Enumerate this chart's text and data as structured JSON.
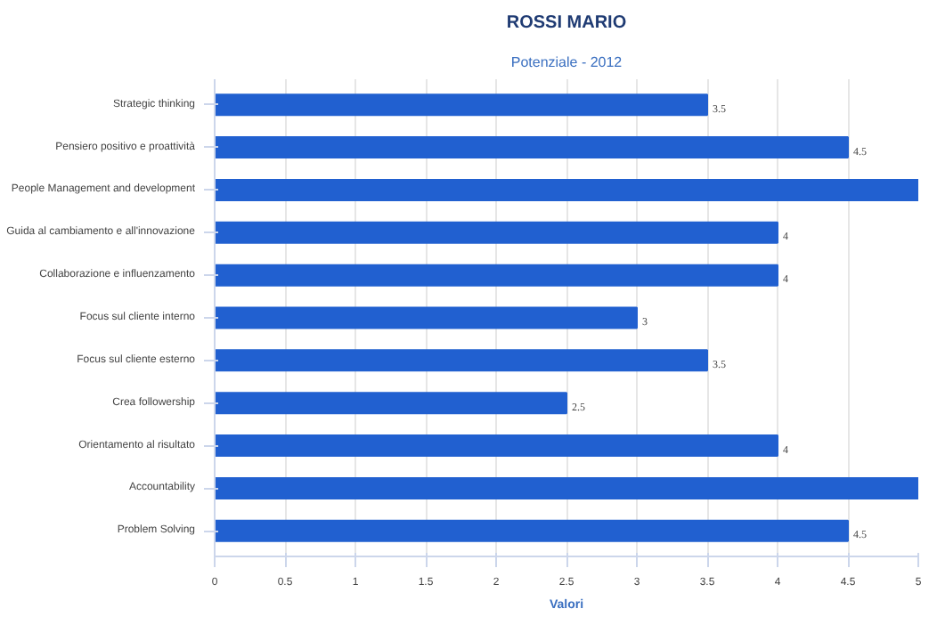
{
  "chart_data": {
    "type": "bar",
    "orientation": "horizontal",
    "title": "ROSSI MARIO",
    "subtitle": "Potenziale - 2012",
    "xlabel": "Valori",
    "categories": [
      "Strategic thinking",
      "Pensiero positivo e proattività",
      "People Management and development",
      "Guida al cambiamento e all'innovazione",
      "Collaborazione e influenzamento",
      "Focus sul cliente interno",
      "Focus sul cliente esterno",
      "Crea followership",
      "Orientamento al risultato",
      "Accountability",
      "Problem Solving"
    ],
    "values": [
      3.5,
      4.5,
      5,
      4,
      4,
      3,
      3.5,
      2.5,
      4,
      5,
      4.5
    ],
    "value_labels": [
      "3.5",
      "4.5",
      null,
      "4",
      "4",
      "3",
      "3.5",
      "2.5",
      "4",
      null,
      "4.5"
    ],
    "color": "#2160d0",
    "xlim": [
      0,
      5
    ],
    "xticks": [
      0,
      0.5,
      1,
      1.5,
      2,
      2.5,
      3,
      3.5,
      4,
      4.5,
      5
    ],
    "grid": "x"
  }
}
